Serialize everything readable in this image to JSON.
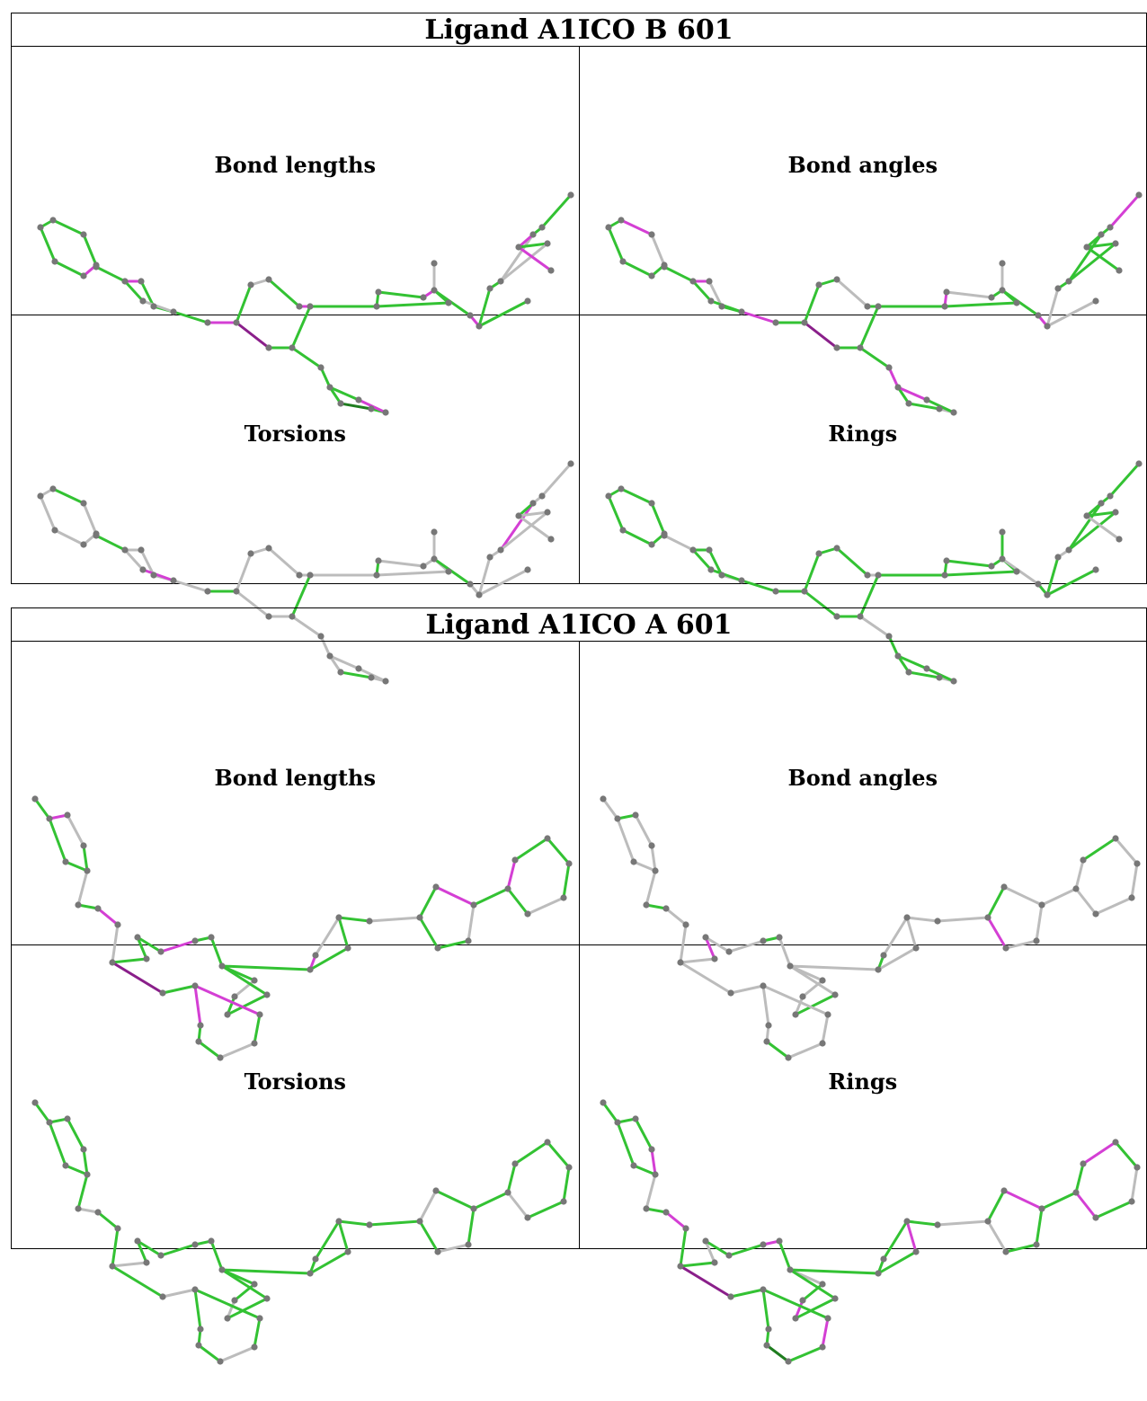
{
  "colors": {
    "green": "#33c233",
    "dark_green": "#1f7d1f",
    "magenta": "#d43fd4",
    "dark_magenta": "#8a1f8a",
    "gray": "#bcbcbc",
    "atom": "#777777"
  },
  "tables": [
    {
      "title": "Ligand A1ICO B 601",
      "panels": [
        {
          "label": "Bond lengths"
        },
        {
          "label": "Bond angles"
        },
        {
          "label": "Torsions"
        },
        {
          "label": "Rings"
        }
      ]
    },
    {
      "title": "Ligand A1ICO A 601",
      "panels": [
        {
          "label": "Bond lengths"
        },
        {
          "label": "Bond angles"
        },
        {
          "label": "Torsions"
        },
        {
          "label": "Rings"
        }
      ]
    }
  ]
}
